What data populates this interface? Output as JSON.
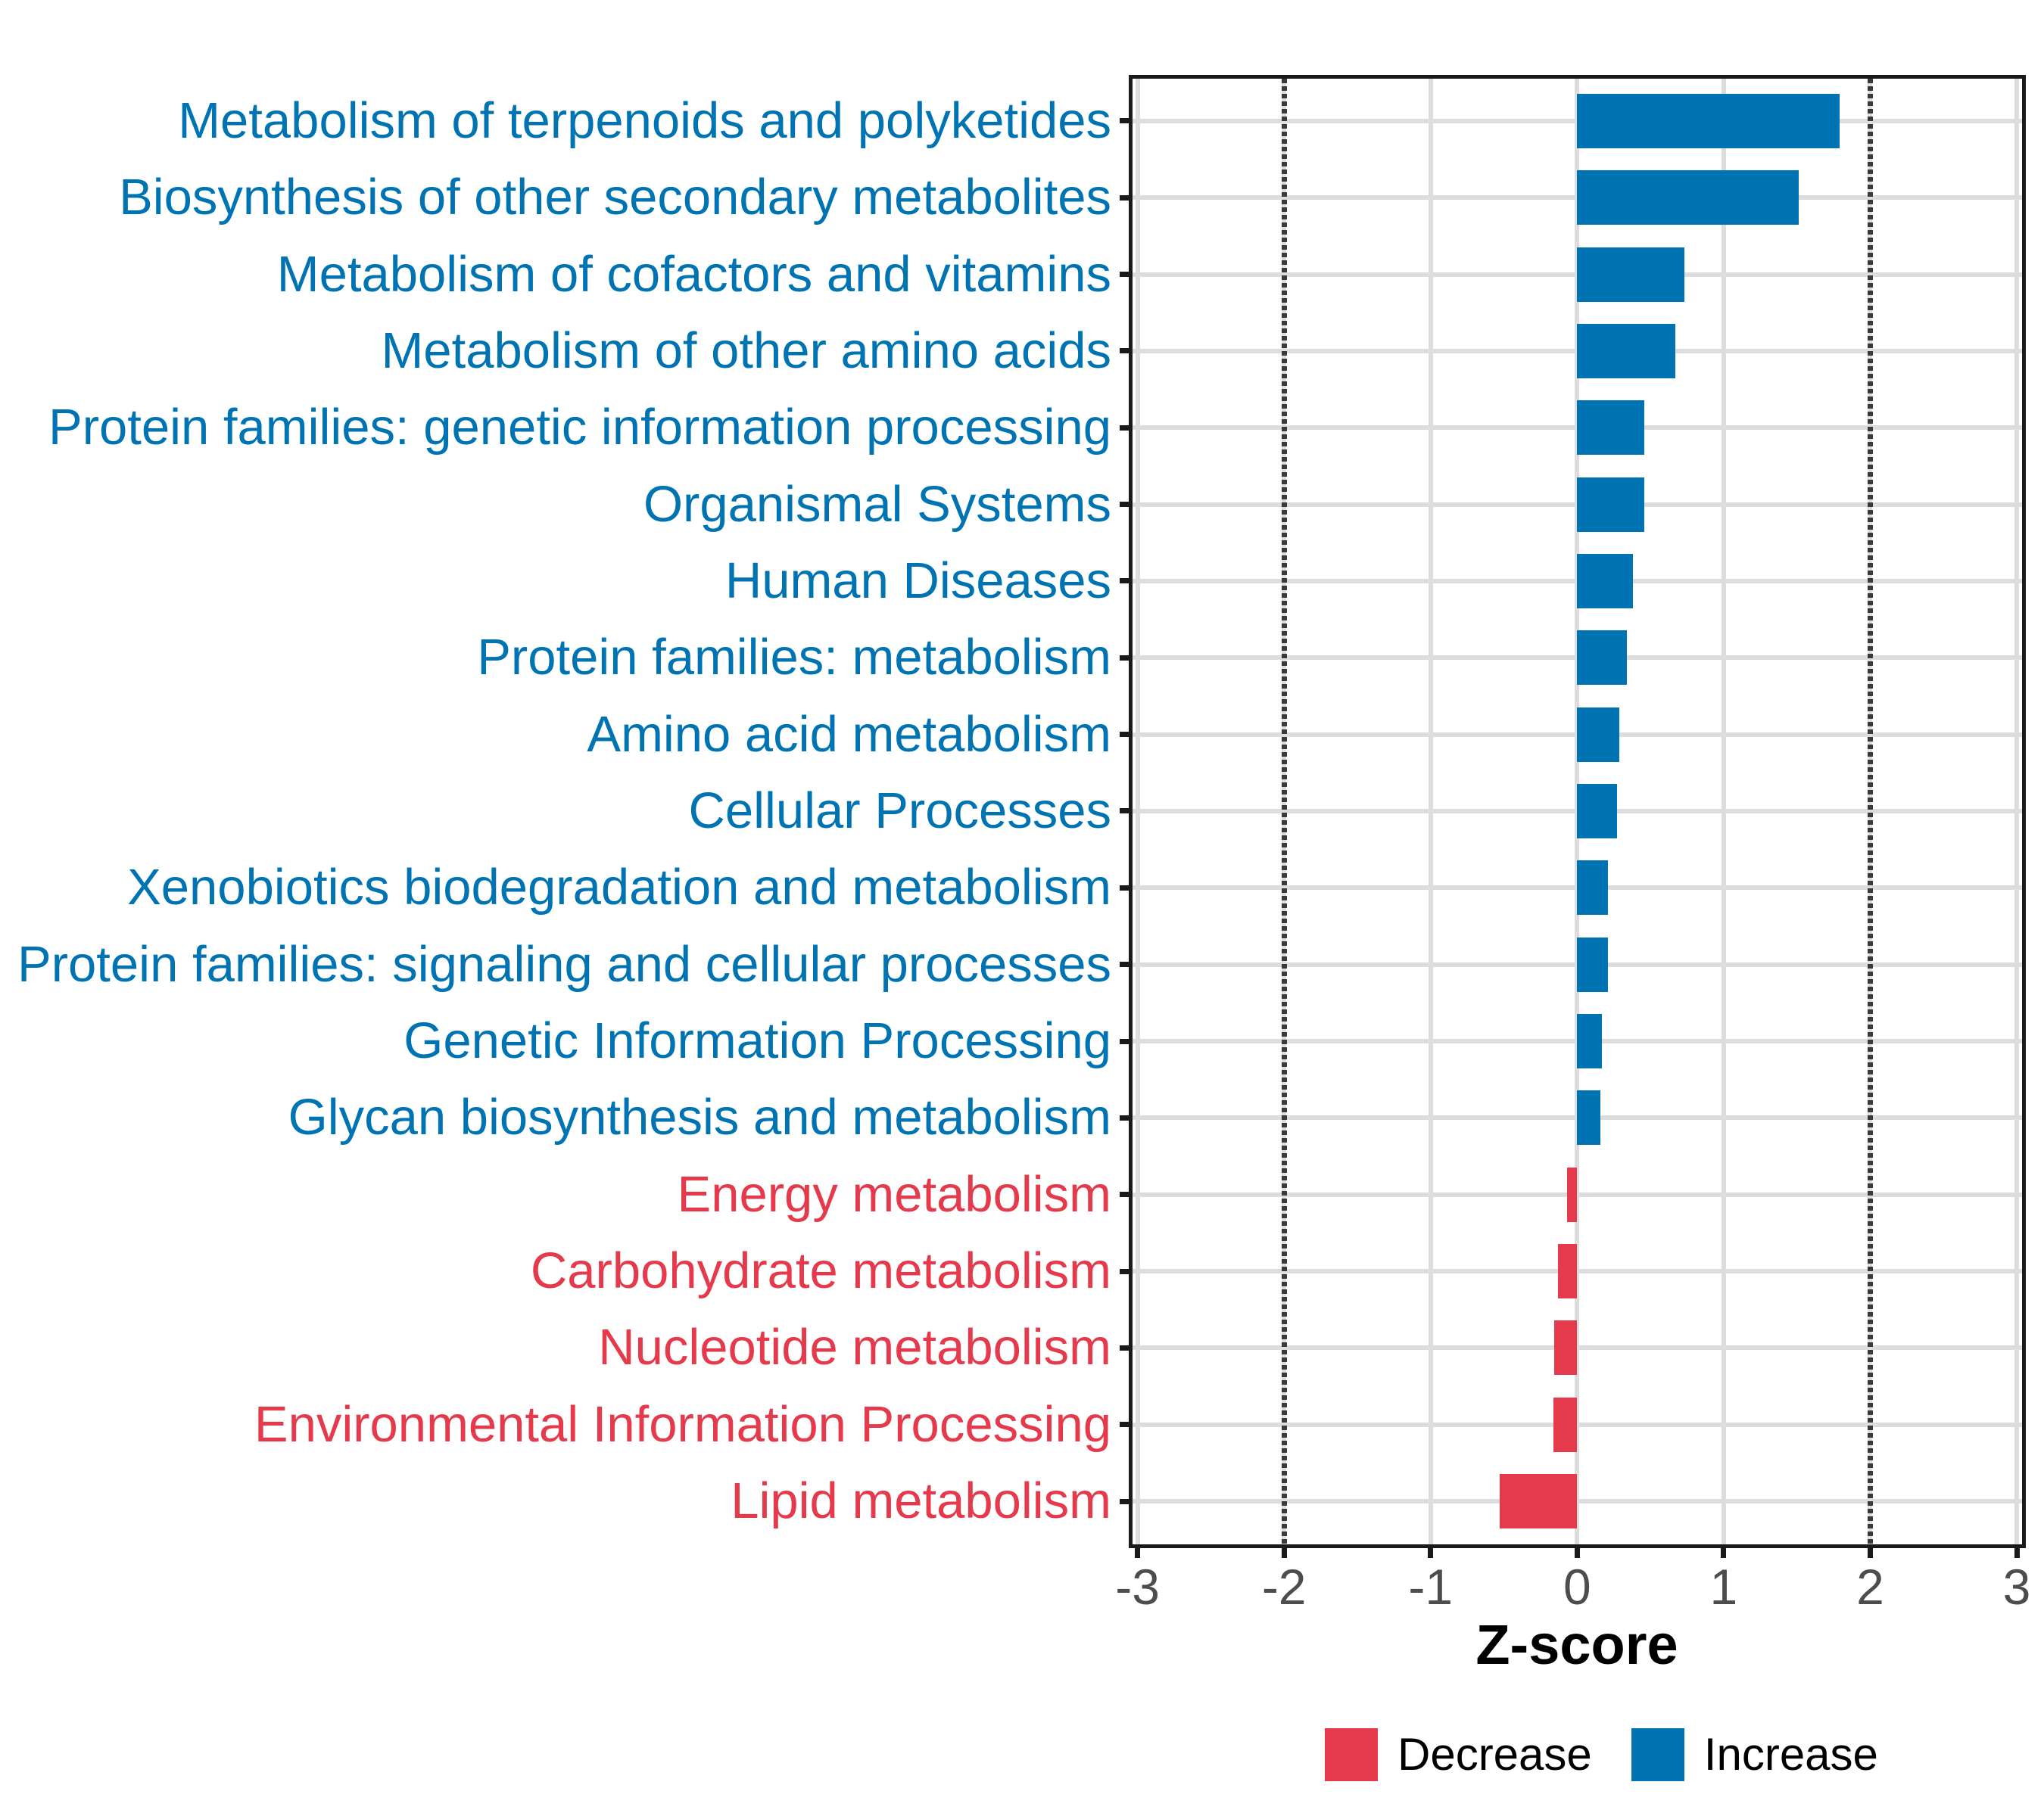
{
  "chart_data": {
    "type": "bar",
    "orientation": "horizontal",
    "title": "",
    "xlabel": "Z-score",
    "ylabel": "",
    "xlim": [
      -3,
      3
    ],
    "x_ticks": [
      -3,
      -2,
      -1,
      0,
      1,
      2,
      3
    ],
    "reference_lines": [
      -2,
      2
    ],
    "grid": true,
    "legend_position": "bottom",
    "colors": {
      "Increase": "#0073B2",
      "Decrease": "#E43A4C"
    },
    "series": [
      {
        "category": "Metabolism of terpenoids and polyketides",
        "value": 1.79,
        "group": "Increase"
      },
      {
        "category": "Biosynthesis of other secondary metabolites",
        "value": 1.51,
        "group": "Increase"
      },
      {
        "category": "Metabolism of cofactors and vitamins",
        "value": 0.73,
        "group": "Increase"
      },
      {
        "category": "Metabolism of other amino acids",
        "value": 0.67,
        "group": "Increase"
      },
      {
        "category": "Protein families: genetic information processing",
        "value": 0.46,
        "group": "Increase"
      },
      {
        "category": "Organismal Systems",
        "value": 0.46,
        "group": "Increase"
      },
      {
        "category": "Human Diseases",
        "value": 0.38,
        "group": "Increase"
      },
      {
        "category": "Protein families: metabolism",
        "value": 0.34,
        "group": "Increase"
      },
      {
        "category": "Amino acid metabolism",
        "value": 0.29,
        "group": "Increase"
      },
      {
        "category": "Cellular Processes",
        "value": 0.27,
        "group": "Increase"
      },
      {
        "category": "Xenobiotics biodegradation and metabolism",
        "value": 0.21,
        "group": "Increase"
      },
      {
        "category": "Protein families: signaling and cellular processes",
        "value": 0.21,
        "group": "Increase"
      },
      {
        "category": "Genetic Information Processing",
        "value": 0.17,
        "group": "Increase"
      },
      {
        "category": "Glycan biosynthesis and metabolism",
        "value": 0.16,
        "group": "Increase"
      },
      {
        "category": "Energy metabolism",
        "value": -0.07,
        "group": "Decrease"
      },
      {
        "category": "Carbohydrate metabolism",
        "value": -0.13,
        "group": "Decrease"
      },
      {
        "category": "Nucleotide metabolism",
        "value": -0.155,
        "group": "Decrease"
      },
      {
        "category": "Environmental Information Processing",
        "value": -0.16,
        "group": "Decrease"
      },
      {
        "category": "Lipid metabolism",
        "value": -0.53,
        "group": "Decrease"
      }
    ],
    "legend": [
      {
        "label": "Decrease",
        "color": "#E43A4C"
      },
      {
        "label": "Increase",
        "color": "#0073B2"
      }
    ]
  }
}
